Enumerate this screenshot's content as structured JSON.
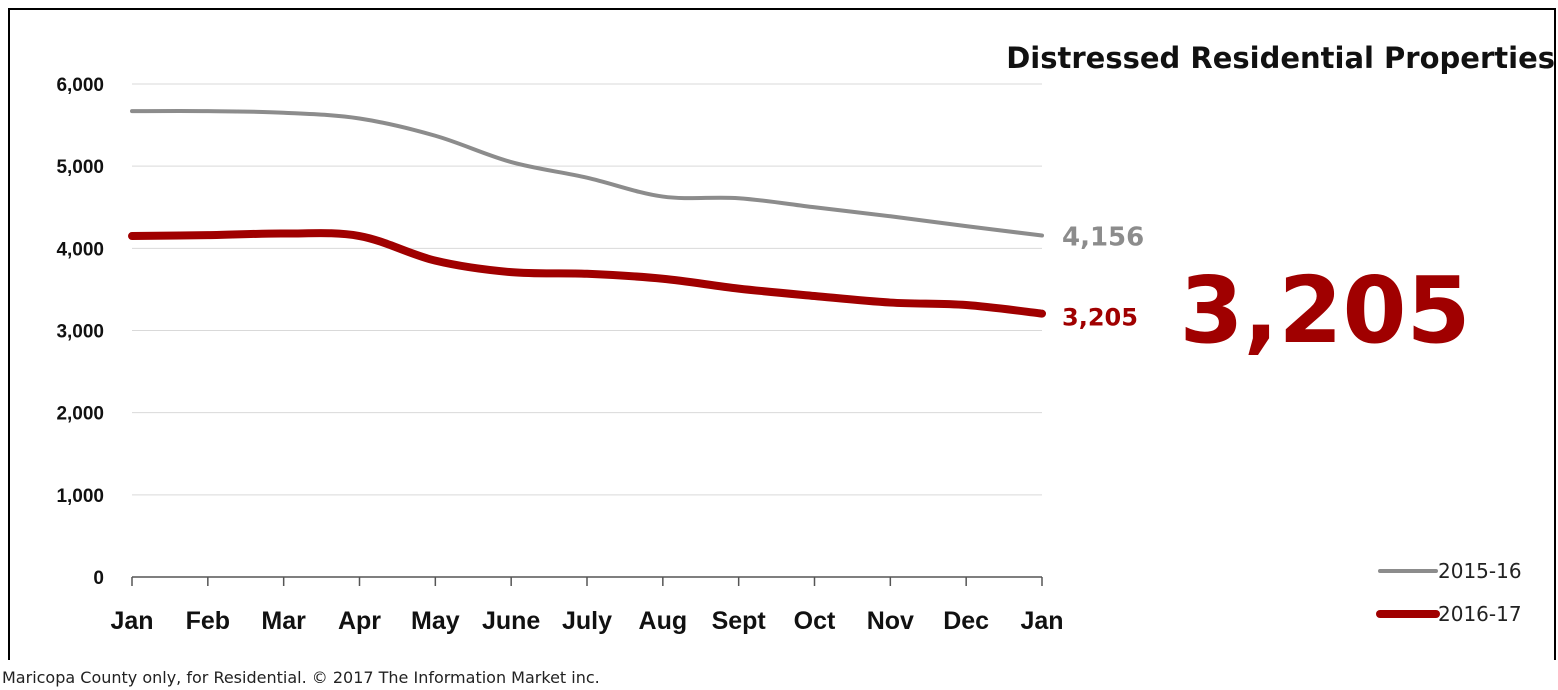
{
  "chart_data": {
    "type": "line",
    "title": "Distressed Residential Properties",
    "categories": [
      "Jan",
      "Feb",
      "Mar",
      "Apr",
      "May",
      "June",
      "July",
      "Aug",
      "Sept",
      "Oct",
      "Nov",
      "Dec",
      "Jan"
    ],
    "series": [
      {
        "name": "2015-16",
        "color": "#8c8c8c",
        "values": [
          5670,
          5670,
          5650,
          5580,
          5370,
          5050,
          4860,
          4630,
          4610,
          4500,
          4390,
          4270,
          4156
        ],
        "end_label": "4,156"
      },
      {
        "name": "2016-17",
        "color": "#a00000",
        "values": [
          4150,
          4160,
          4180,
          4150,
          3850,
          3710,
          3690,
          3630,
          3510,
          3420,
          3340,
          3310,
          3205
        ],
        "end_label": "3,205"
      }
    ],
    "yticks": [
      "0",
      "1,000",
      "2,000",
      "3,000",
      "4,000",
      "5,000",
      "6,000"
    ],
    "ytick_values": [
      0,
      1000,
      2000,
      3000,
      4000,
      5000,
      6000
    ],
    "ylim": [
      0,
      6000
    ],
    "xlabel": "",
    "ylabel": "",
    "grid": true,
    "legend_position": "bottom-right",
    "highlight_value": "3,205",
    "highlight_color": "#a00000"
  },
  "footer": {
    "note": "Maricopa  County only, for Residential. © 2017  The Information Market  inc."
  }
}
